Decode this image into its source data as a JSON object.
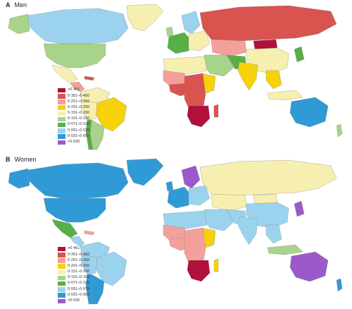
{
  "panels": [
    {
      "id": "a",
      "letter": "A",
      "title": "Men",
      "legend": [
        {
          "label": ">0·451",
          "color": "#b0103a"
        },
        {
          "label": "0·351–0·450",
          "color": "#d9534f"
        },
        {
          "label": "0·251–0·350",
          "color": "#f4a09a"
        },
        {
          "label": "0·201–0·250",
          "color": "#f5d20a"
        },
        {
          "label": "0·151–0·200",
          "color": "#f7efb0"
        },
        {
          "label": "0·101–0·150",
          "color": "#a8d38a"
        },
        {
          "label": "0·071–0·100",
          "color": "#56b045"
        },
        {
          "label": "0·051–0·070",
          "color": "#9bd3ee"
        },
        {
          "label": "0·031–0·050",
          "color": "#2f9ad6"
        },
        {
          "label": "<0·030",
          "color": "#9b59c9"
        }
      ]
    },
    {
      "id": "b",
      "letter": "B",
      "title": "Women",
      "legend": [
        {
          "label": ">0·451",
          "color": "#b0103a"
        },
        {
          "label": "0·351–0·450",
          "color": "#d9534f"
        },
        {
          "label": "0·251–0·350",
          "color": "#f4a09a"
        },
        {
          "label": "0·201–0·250",
          "color": "#f5d20a"
        },
        {
          "label": "0·151–0·200",
          "color": "#f7efb0"
        },
        {
          "label": "0·101–0·150",
          "color": "#a8d38a"
        },
        {
          "label": "0·071–0·100",
          "color": "#56b045"
        },
        {
          "label": "0·051–0·070",
          "color": "#9bd3ee"
        },
        {
          "label": "0·031–0·050",
          "color": "#2f9ad6"
        },
        {
          "label": "<0·030",
          "color": "#9b59c9"
        }
      ]
    }
  ],
  "colors": {
    "c1": "#b0103a",
    "c2": "#d9534f",
    "c3": "#f4a09a",
    "c4": "#f5d20a",
    "c5": "#f7efb0",
    "c6": "#a8d38a",
    "c7": "#56b045",
    "c8": "#9bd3ee",
    "c9": "#2f9ad6",
    "c10": "#9b59c9",
    "nodata": "#ffffff"
  }
}
